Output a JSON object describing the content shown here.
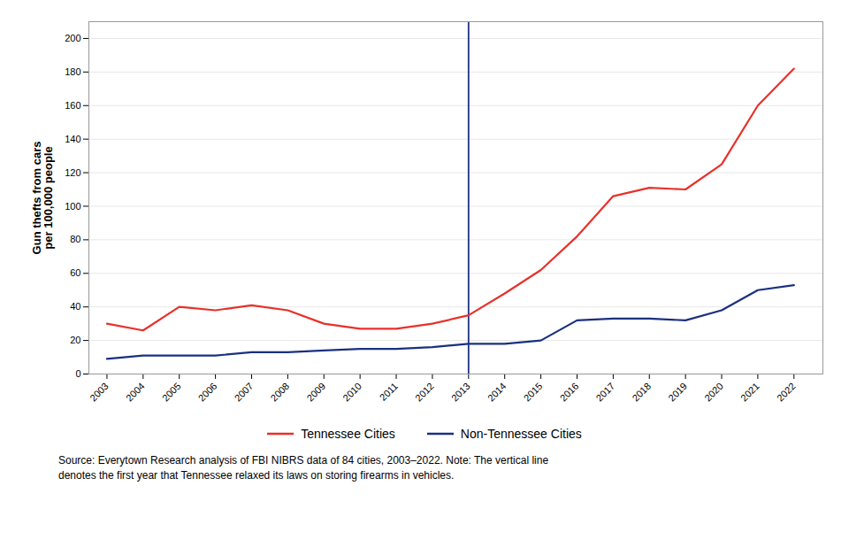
{
  "chart_data": {
    "type": "line",
    "x": [
      2003,
      2004,
      2005,
      2006,
      2007,
      2008,
      2009,
      2010,
      2011,
      2012,
      2013,
      2014,
      2015,
      2016,
      2017,
      2018,
      2019,
      2020,
      2021,
      2022
    ],
    "series": [
      {
        "name": "Tennessee Cities",
        "color": "#E8312A",
        "values": [
          30,
          26,
          40,
          38,
          41,
          38,
          30,
          27,
          27,
          30,
          35,
          48,
          62,
          82,
          106,
          111,
          110,
          125,
          160,
          182
        ]
      },
      {
        "name": "Non-Tennessee Cities",
        "color": "#1B3080",
        "values": [
          9,
          11,
          11,
          11,
          13,
          13,
          14,
          15,
          15,
          16,
          18,
          18,
          20,
          32,
          33,
          33,
          32,
          38,
          50,
          53
        ]
      }
    ],
    "ylabel": "Gun thefts from cars\nper 100,000 people",
    "xlim": [
      2002.5,
      2022.8
    ],
    "xticks": [
      2003,
      2004,
      2005,
      2006,
      2007,
      2008,
      2009,
      2010,
      2011,
      2012,
      2013,
      2014,
      2015,
      2016,
      2017,
      2018,
      2019,
      2020,
      2021,
      2022
    ],
    "ylim": [
      0,
      210
    ],
    "yticks": [
      0,
      20,
      40,
      60,
      80,
      100,
      120,
      140,
      160,
      180,
      200
    ],
    "grid": "y",
    "legend": "bottom",
    "vline_x": 2013,
    "vline_color": "#1B3080",
    "source": [
      "Source: Everytown Research analysis of FBI NIBRS data of 84 cities, 2003–2022. Note: The vertical line",
      "denotes the first year that Tennessee relaxed its laws on storing firearms in vehicles."
    ]
  }
}
